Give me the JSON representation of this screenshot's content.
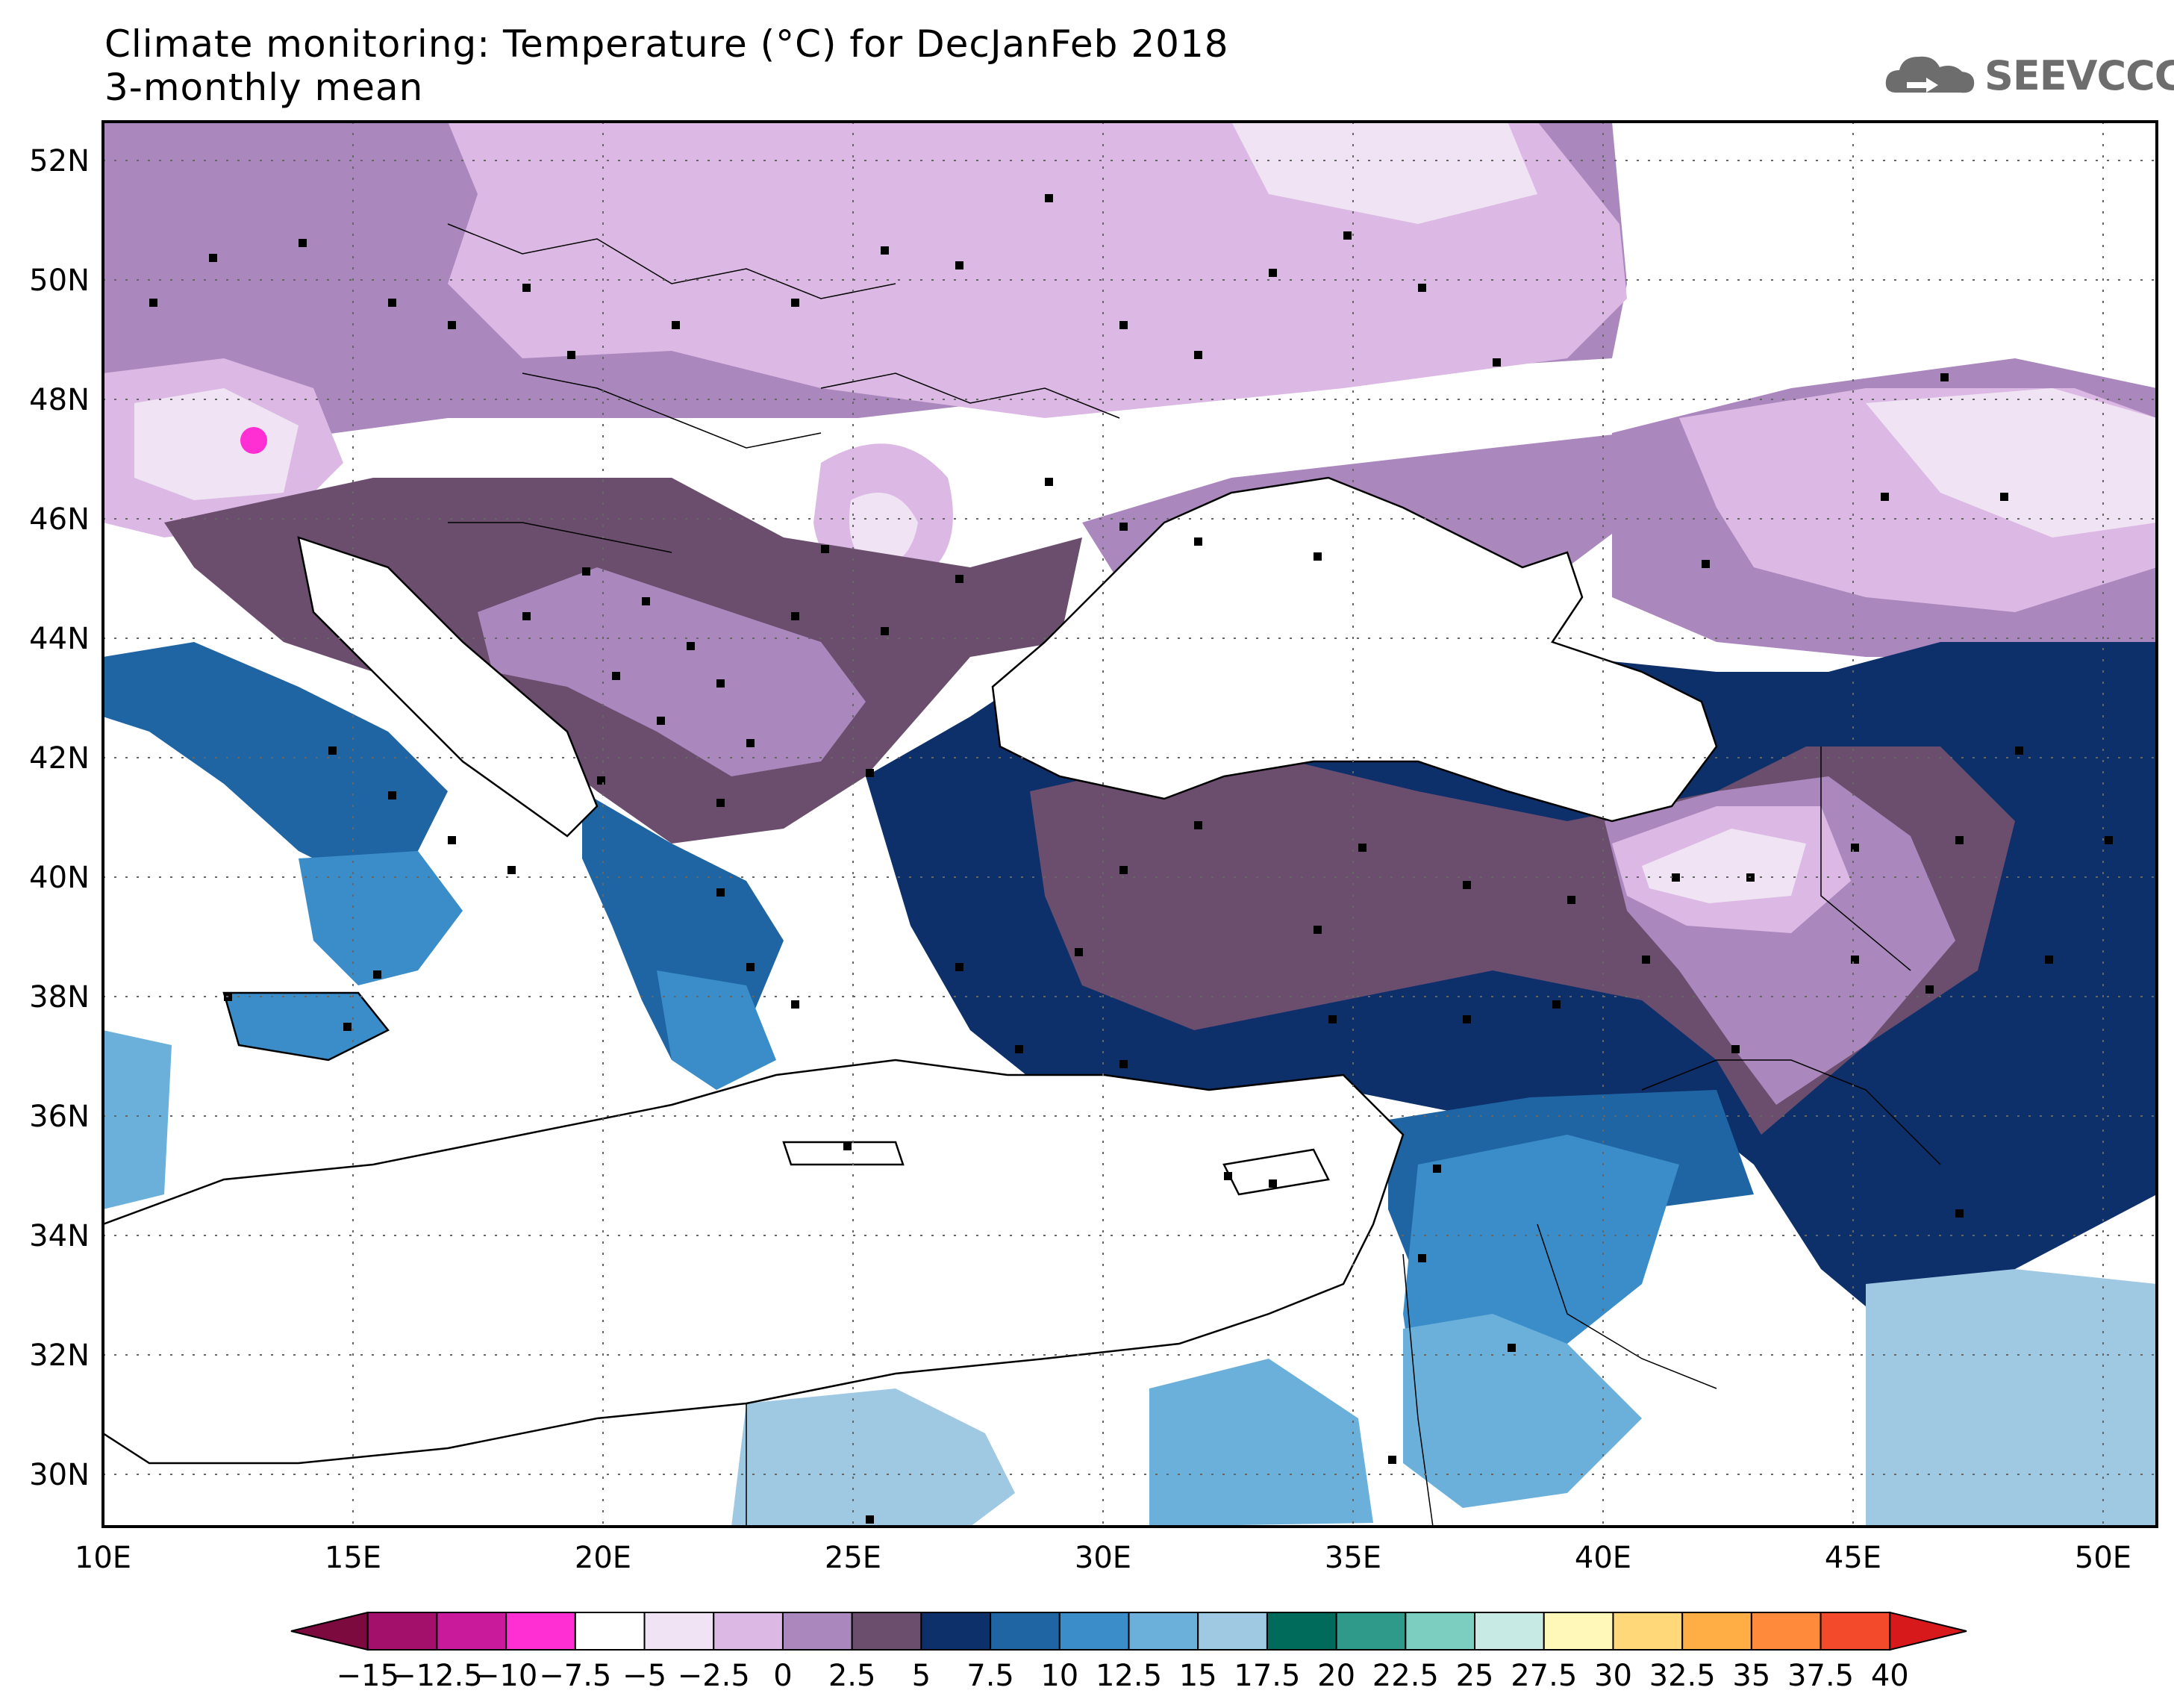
{
  "title_line1": "Climate monitoring: Temperature (°C) for DecJanFeb 2018",
  "title_line2": "3-monthly mean",
  "logo": {
    "text": "SEEVCCC",
    "icon": "cloud-icon"
  },
  "map": {
    "lon_range": [
      10,
      51
    ],
    "lat_range": [
      29,
      52.5
    ],
    "x_ticks": [
      "10E",
      "15E",
      "20E",
      "25E",
      "30E",
      "35E",
      "40E",
      "45E",
      "50E"
    ],
    "y_ticks": [
      "30N",
      "32N",
      "34N",
      "36N",
      "38N",
      "40N",
      "42N",
      "44N",
      "46N",
      "48N",
      "50N",
      "52N"
    ],
    "grid": "dotted"
  },
  "colorbar": {
    "labels": [
      "-15",
      "-12.5",
      "-10",
      "-7.5",
      "-5",
      "-2.5",
      "0",
      "2.5",
      "5",
      "7.5",
      "10",
      "12.5",
      "15",
      "17.5",
      "20",
      "22.5",
      "25",
      "27.5",
      "30",
      "32.5",
      "35",
      "37.5",
      "40"
    ],
    "colors": [
      "#7d0a3f",
      "#a3106c",
      "#c81a9b",
      "#ff2fd4",
      "#ffffff",
      "#f0e4f4",
      "#dcb8e4",
      "#aa88bd",
      "#6b4e6e",
      "#0d2f6a",
      "#1f65a3",
      "#3a8dc8",
      "#6bb0da",
      "#9fc9e3",
      "#006b5a",
      "#2f9a8a",
      "#7ccfc0",
      "#c7ebe4",
      "#fff8b8",
      "#ffd87a",
      "#ffae45",
      "#ff8a3c",
      "#f24a2a",
      "#d7191c"
    ]
  }
}
